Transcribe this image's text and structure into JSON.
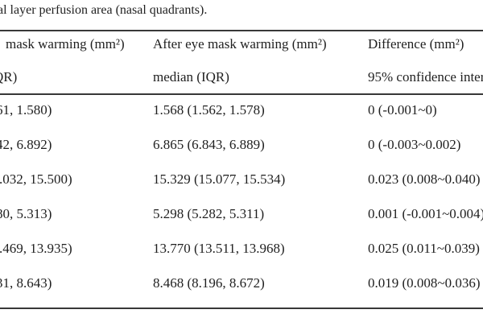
{
  "caption": "al layer perfusion area (nasal quadrants).",
  "table": {
    "header": {
      "col1_line1": "mask warming (mm²)",
      "col1_line2": "QR)",
      "col2_line1": "After eye mask warming (mm²)",
      "col2_line2": "median (IQR)",
      "col3_line1": "Difference (mm²)",
      "col3_line2": "95% confidence inter"
    },
    "rows": [
      {
        "before": "61, 1.580)",
        "after": "1.568 (1.562, 1.578)",
        "difference": "0 (-0.001~0)"
      },
      {
        "before": "42, 6.892)",
        "after": "6.865 (6.843, 6.889)",
        "difference": "0 (-0.003~0.002)"
      },
      {
        "before": ".032, 15.500)",
        "after": "15.329 (15.077, 15.534)",
        "difference": "0.023 (0.008~0.040)"
      },
      {
        "before": "80, 5.313)",
        "after": "5.298 (5.282, 5.311)",
        "difference": "0.001 (-0.001~0.004)"
      },
      {
        "before": ".469, 13.935)",
        "after": "13.770 (13.511, 13.968)",
        "difference": "0.025 (0.011~0.039)"
      },
      {
        "before": "31, 8.643)",
        "after": "8.468 (8.196, 8.672)",
        "difference": "0.019 (0.008~0.036)"
      }
    ]
  },
  "colors": {
    "text": "#1f1f1f",
    "rule": "#383838",
    "background": "#ffffff"
  }
}
